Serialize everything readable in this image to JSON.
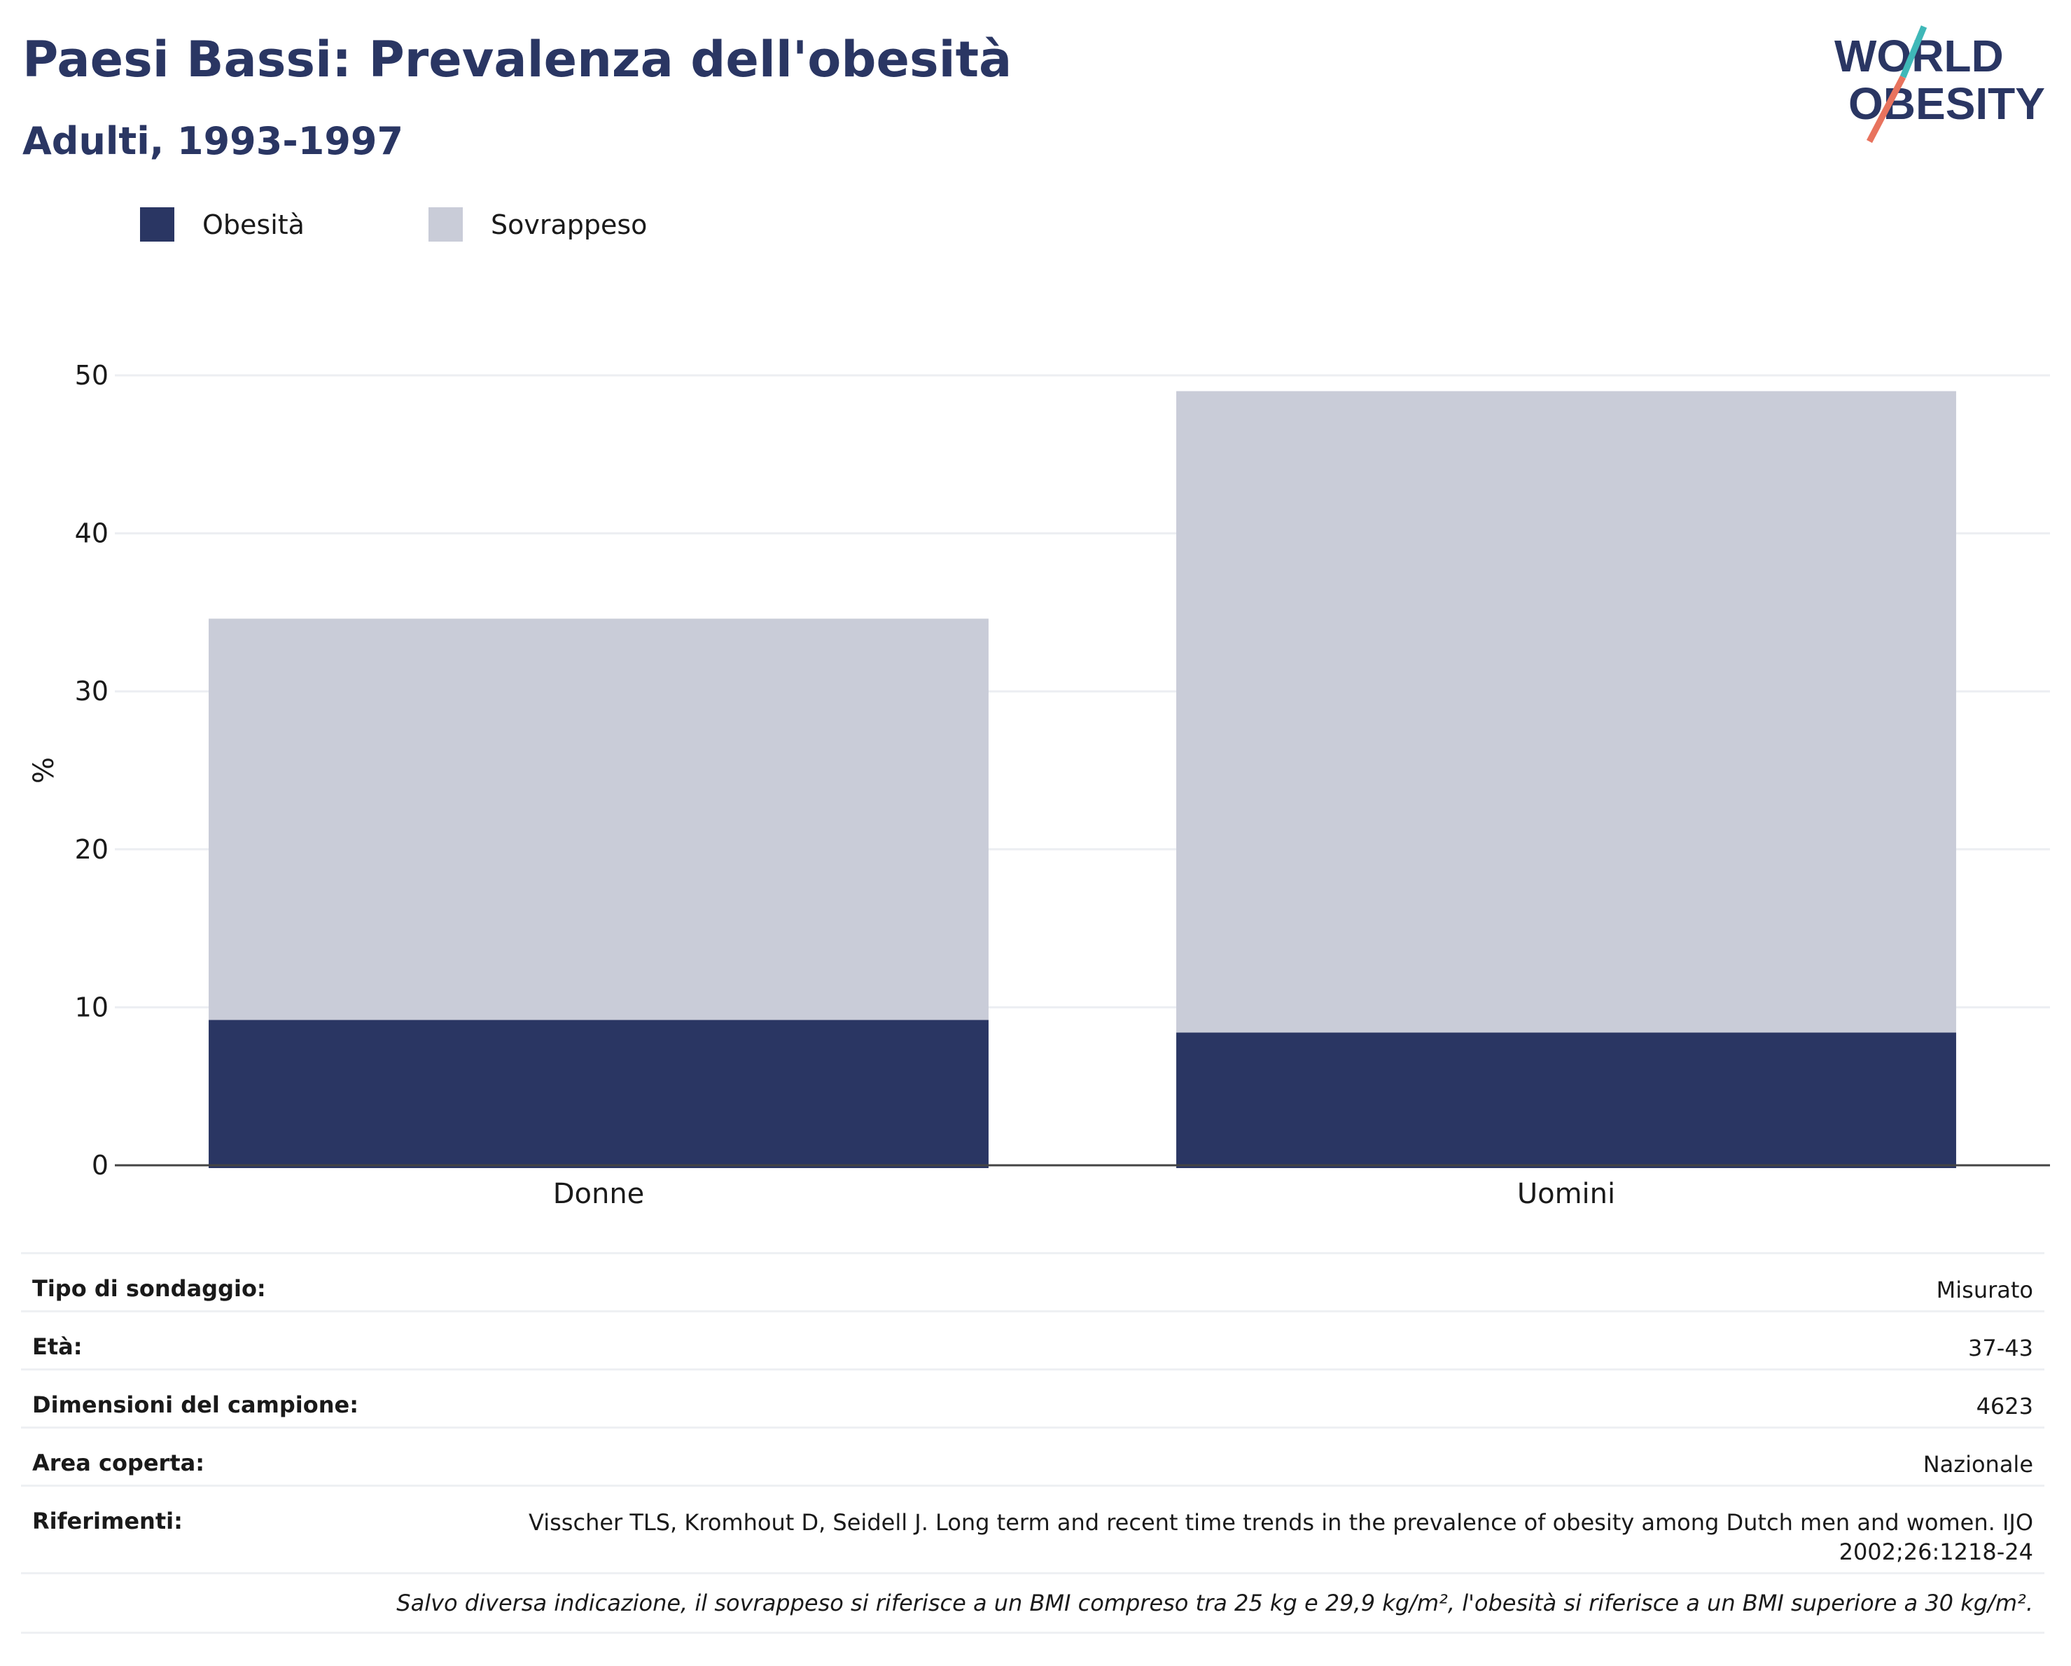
{
  "header": {
    "title": "Paesi Bassi: Prevalenza dell'obesità",
    "subtitle": "Adulti, 1993-1997"
  },
  "logo": {
    "line1": "WORLD",
    "line2": "OBESITY",
    "colors": [
      "#2a3663",
      "#3fb8b8",
      "#e8735e"
    ]
  },
  "legend": [
    {
      "label": "Obesità",
      "color": "#2a3663"
    },
    {
      "label": "Sovrappeso",
      "color": "#c9ccd8"
    }
  ],
  "chart_data": {
    "type": "bar",
    "stacked": true,
    "categories": [
      "Donne",
      "Uomini"
    ],
    "series": [
      {
        "name": "Obesità",
        "values": [
          9.2,
          8.4
        ],
        "color": "#2a3663"
      },
      {
        "name": "Sovrappeso",
        "values": [
          25.4,
          40.6
        ],
        "color": "#c9ccd8"
      }
    ],
    "ylabel": "%",
    "ylim": [
      0,
      50
    ],
    "yticks": [
      0,
      10,
      20,
      30,
      40,
      50
    ],
    "grid": true,
    "legend_position": "top-left"
  },
  "info": [
    {
      "label": "Tipo di sondaggio:",
      "value": "Misurato"
    },
    {
      "label": "Età:",
      "value": "37-43"
    },
    {
      "label": "Dimensioni del campione:",
      "value": "4623"
    },
    {
      "label": "Area coperta:",
      "value": "Nazionale"
    },
    {
      "label": "Riferimenti:",
      "value": "Visscher TLS, Kromhout D, Seidell J. Long term and recent time trends in the prevalence of obesity among Dutch men and women. IJO 2002;26:1218-24"
    }
  ],
  "note": "Salvo diversa indicazione, il sovrappeso si riferisce a un BMI compreso tra 25 kg e 29,9 kg/m², l'obesità si riferisce a un BMI superiore a 30 kg/m²."
}
